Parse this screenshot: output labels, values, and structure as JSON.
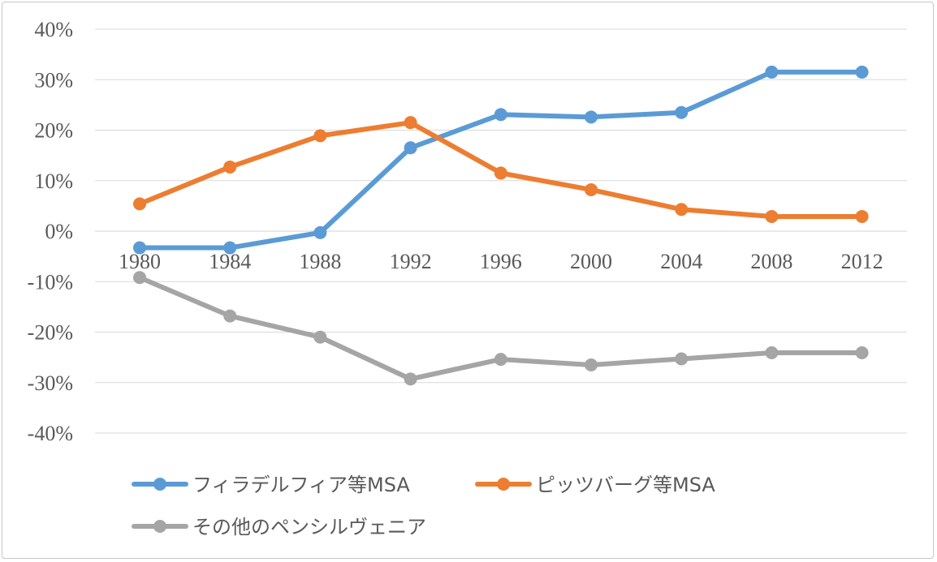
{
  "chart_data": {
    "type": "line",
    "title": "",
    "xlabel": "",
    "ylabel": "",
    "categories": [
      "1980",
      "1984",
      "1988",
      "1992",
      "1996",
      "2000",
      "2004",
      "2008",
      "2012"
    ],
    "ylim": [
      -0.4,
      0.4
    ],
    "y_ticks": [
      0.4,
      0.3,
      0.2,
      0.1,
      0,
      -0.1,
      -0.2,
      -0.3,
      -0.4
    ],
    "y_tick_labels": [
      "40%",
      "30%",
      "20%",
      "10%",
      "0%",
      "-10%",
      "-20%",
      "-30%",
      "-40%"
    ],
    "grid": true,
    "legend_position": "bottom",
    "series": [
      {
        "name": "フィラデルフィア等MSA",
        "color": "#5b9bd5",
        "values": [
          -0.033,
          -0.033,
          -0.003,
          0.165,
          0.231,
          0.226,
          0.235,
          0.315,
          0.315
        ]
      },
      {
        "name": "ピッツバーグ等MSA",
        "color": "#ed7d31",
        "values": [
          0.054,
          0.127,
          0.189,
          0.215,
          0.115,
          0.082,
          0.043,
          0.029,
          0.029
        ]
      },
      {
        "name": "その他のペンシルヴェニア",
        "color": "#a5a5a5",
        "values": [
          -0.092,
          -0.168,
          -0.21,
          -0.293,
          -0.254,
          -0.265,
          -0.253,
          -0.241,
          -0.241
        ]
      }
    ]
  }
}
